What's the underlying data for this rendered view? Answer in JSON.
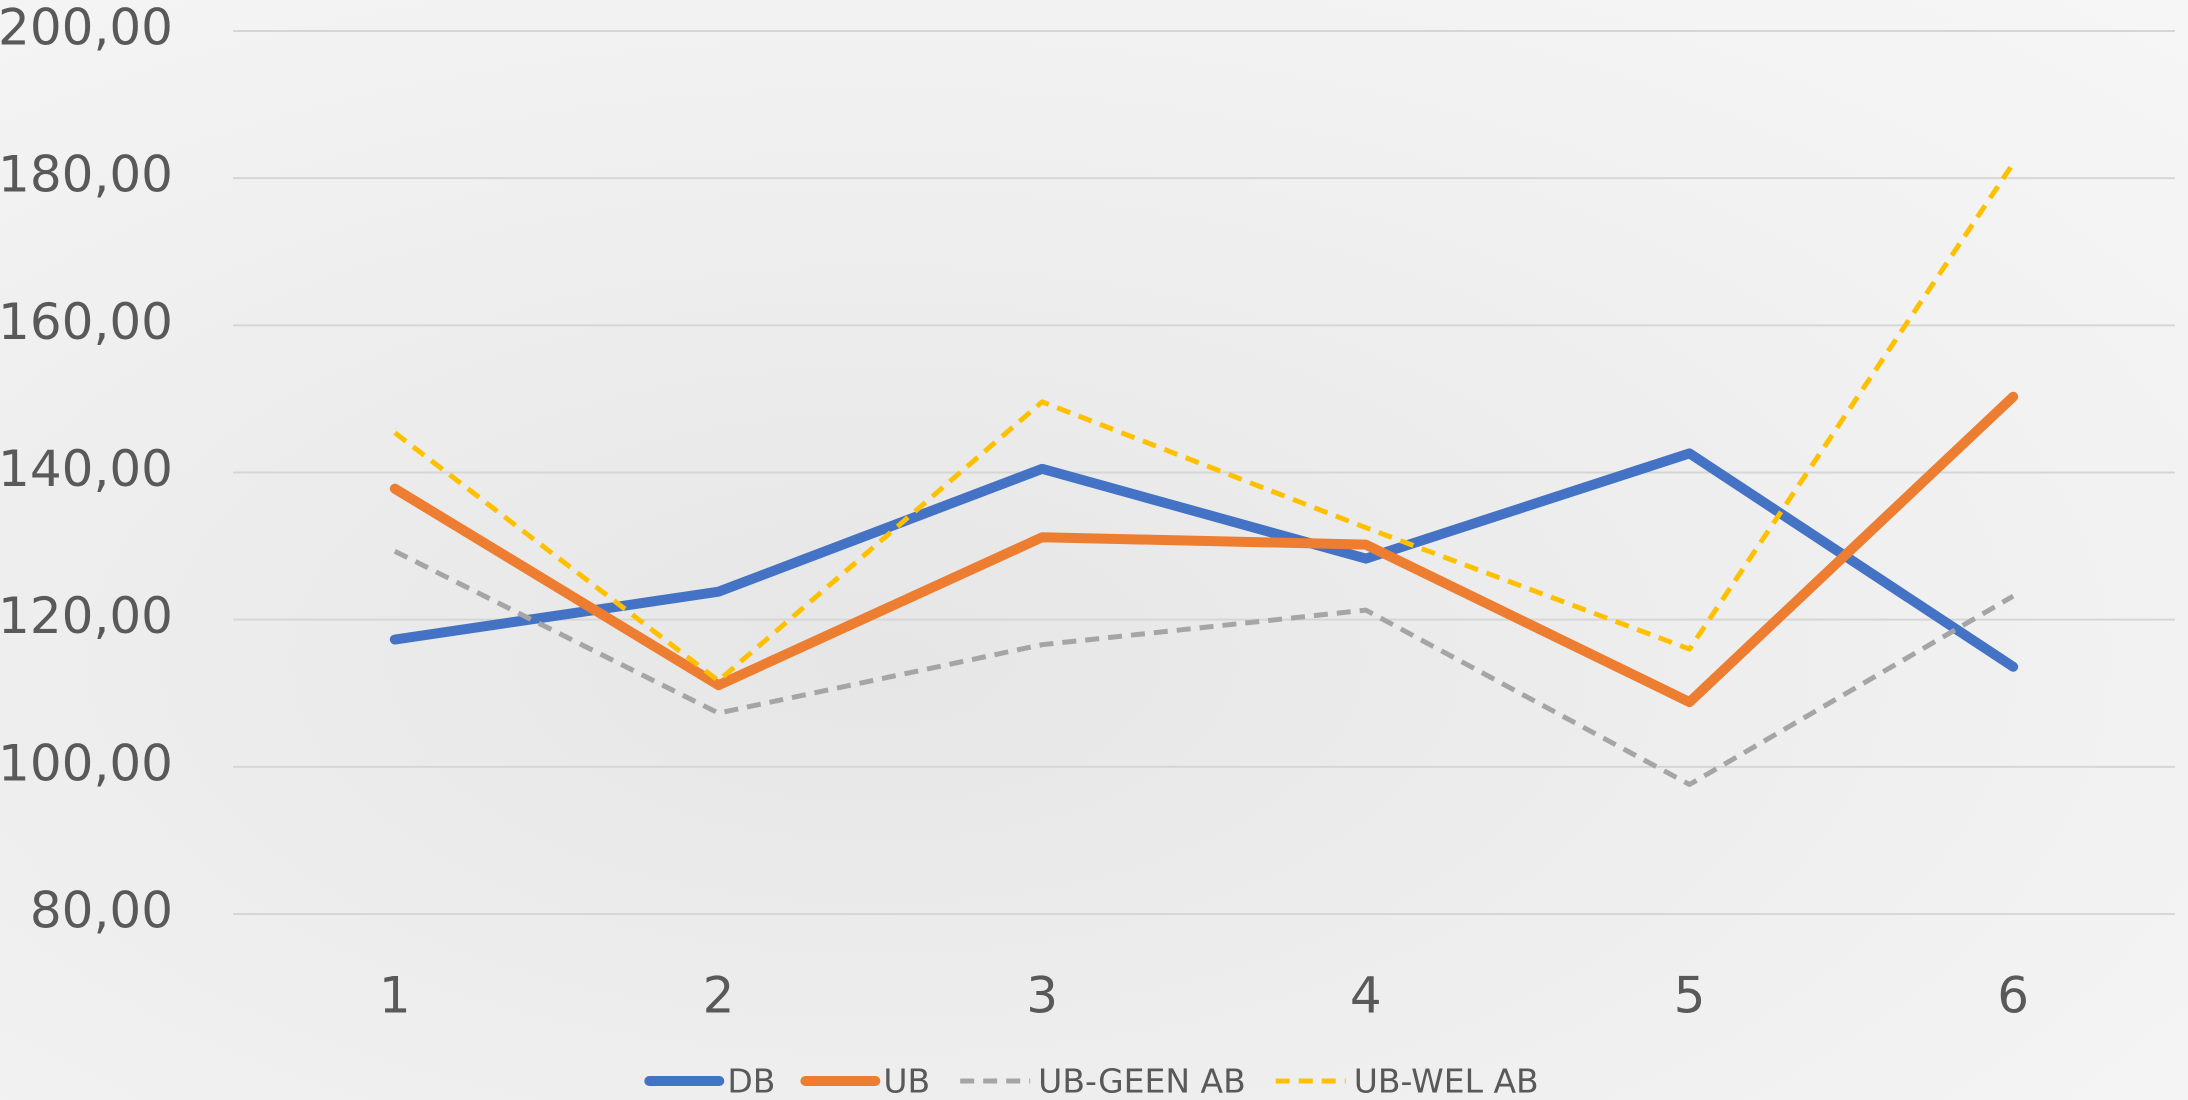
{
  "chart_data": {
    "type": "line",
    "categories": [
      "1",
      "2",
      "3",
      "4",
      "5",
      "6"
    ],
    "series": [
      {
        "name": "DB",
        "color": "#4472c4",
        "dashed": false,
        "values": [
          117.3,
          123.8,
          140.5,
          128.3,
          142.6,
          113.6
        ]
      },
      {
        "name": "UB",
        "color": "#ed7d31",
        "dashed": false,
        "values": [
          137.8,
          111.1,
          131.2,
          130.2,
          108.8,
          150.3
        ]
      },
      {
        "name": "UB-GEEN AB",
        "color": "#a5a5a5",
        "dashed": true,
        "values": [
          129.3,
          107.3,
          116.6,
          121.3,
          97.6,
          123.2
        ]
      },
      {
        "name": "UB-WEL AB",
        "color": "#ffc000",
        "dashed": true,
        "values": [
          145.4,
          111.7,
          149.6,
          132.5,
          116.0,
          182.0
        ]
      }
    ],
    "ylim": [
      80,
      200
    ],
    "yticks": [
      {
        "value": 80,
        "label": "80,00"
      },
      {
        "value": 100,
        "label": "100,00"
      },
      {
        "value": 120,
        "label": "120,00"
      },
      {
        "value": 140,
        "label": "140,00"
      },
      {
        "value": 160,
        "label": "160,00"
      },
      {
        "value": 180,
        "label": "180,00"
      },
      {
        "value": 200,
        "label": "200,00"
      }
    ],
    "grid": true,
    "legend": "bottom"
  }
}
